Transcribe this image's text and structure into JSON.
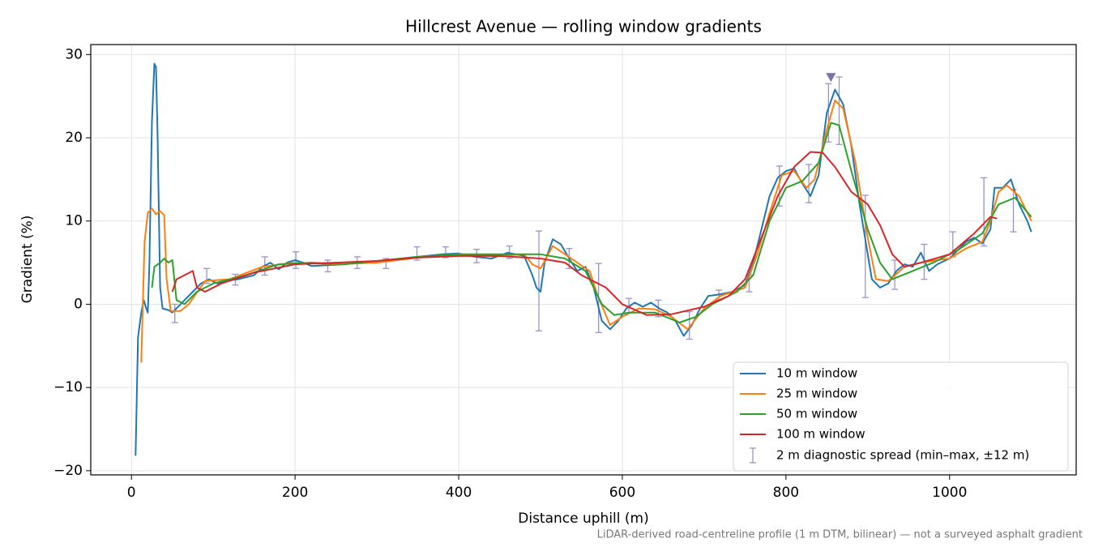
{
  "chart_data": {
    "type": "line",
    "title": "Hillcrest Avenue — rolling window gradients",
    "x_label": "Distance uphill (m)",
    "y_label": "Gradient (%)",
    "footnote": "LiDAR-derived road-centreline profile (1 m DTM, bilinear) — not a surveyed asphalt gradient",
    "xlim": [
      -49.75,
      1154.75
    ],
    "ylim": [
      -20.5,
      31.2
    ],
    "xticks": [
      0,
      200,
      400,
      600,
      800,
      1000
    ],
    "yticks": [
      {
        "value": -20,
        "label": "−20"
      },
      {
        "value": -10,
        "label": "−10"
      },
      0,
      10,
      20,
      30
    ],
    "grid": true,
    "legend": "lower right",
    "series": [
      {
        "name": "10 m window",
        "color": "#1f77b4",
        "x": [
          5,
          8,
          12,
          15,
          18,
          20,
          22,
          25,
          28,
          30,
          32,
          35,
          38,
          45,
          50,
          55,
          65,
          75,
          85,
          95,
          105,
          115,
          130,
          150,
          160,
          170,
          180,
          190,
          200,
          210,
          220,
          240,
          260,
          280,
          300,
          320,
          340,
          360,
          380,
          400,
          420,
          440,
          460,
          480,
          490,
          495,
          500,
          505,
          515,
          525,
          535,
          545,
          555,
          565,
          575,
          585,
          595,
          605,
          615,
          625,
          635,
          645,
          655,
          665,
          675,
          685,
          695,
          705,
          720,
          735,
          750,
          760,
          770,
          780,
          790,
          800,
          810,
          820,
          830,
          840,
          850,
          860,
          870,
          880,
          890,
          900,
          905,
          915,
          925,
          935,
          945,
          955,
          965,
          975,
          985,
          1000,
          1010,
          1020,
          1030,
          1040,
          1050,
          1055,
          1065,
          1075,
          1085,
          1095,
          1100
        ],
        "values": [
          -18.2,
          -4,
          -1,
          0.5,
          -0.5,
          -1,
          5,
          22,
          28.9,
          28.5,
          20,
          2,
          -0.5,
          -0.7,
          -1,
          -0.5,
          0.5,
          1.5,
          2.5,
          3,
          2.5,
          2.8,
          3,
          3.5,
          4.5,
          5,
          4.2,
          5,
          5.3,
          5,
          4.6,
          4.7,
          4.8,
          5,
          5,
          5.3,
          5.6,
          5.8,
          6,
          6.1,
          5.7,
          5.5,
          6.2,
          5.8,
          3.5,
          2,
          1.5,
          5,
          7.8,
          7.2,
          5.5,
          4,
          4.5,
          2,
          -2,
          -3,
          -2,
          -0.5,
          0.2,
          -0.3,
          0.2,
          -0.5,
          -1,
          -2,
          -3.8,
          -2.5,
          -0.5,
          1,
          1.2,
          1.5,
          2.3,
          5,
          9,
          13,
          15.2,
          16,
          16.3,
          14.5,
          13,
          15.5,
          23,
          25.8,
          24,
          19,
          12,
          6,
          3,
          2,
          2.5,
          4,
          4.8,
          4.5,
          6.2,
          4,
          4.8,
          5.5,
          6.5,
          7.5,
          8,
          7.3,
          9,
          14,
          14,
          15,
          12,
          10,
          8.7
        ]
      },
      {
        "name": "25 m window",
        "color": "#ff7f0e",
        "x": [
          12,
          16,
          20,
          25,
          30,
          35,
          40,
          43,
          48,
          60,
          70,
          90,
          120,
          160,
          200,
          250,
          300,
          350,
          400,
          450,
          480,
          490,
          500,
          515,
          530,
          545,
          560,
          570,
          585,
          600,
          620,
          640,
          660,
          680,
          700,
          720,
          750,
          765,
          780,
          795,
          810,
          825,
          835,
          850,
          860,
          870,
          885,
          900,
          910,
          925,
          945,
          965,
          985,
          1000,
          1020,
          1040,
          1050,
          1060,
          1070,
          1085,
          1100
        ],
        "values": [
          -7,
          7.5,
          11,
          11.5,
          10.8,
          11.2,
          10.7,
          3,
          -0.8,
          -0.8,
          0,
          2.8,
          3,
          4.5,
          5,
          4.8,
          5,
          5.6,
          6,
          5.8,
          6,
          4.8,
          4.3,
          7,
          6,
          5,
          4,
          1,
          -2.5,
          -1.5,
          -0.5,
          -0.6,
          -1.5,
          -3,
          -0.5,
          1,
          2,
          6,
          11,
          15.5,
          16,
          14,
          15,
          21,
          24.5,
          23.5,
          17,
          8,
          3,
          2.8,
          4.5,
          5,
          5.3,
          5.5,
          6.7,
          7.5,
          10,
          13.5,
          14.3,
          13,
          10
        ]
      },
      {
        "name": "50 m window",
        "color": "#2ca02c",
        "x": [
          25,
          28,
          35,
          40,
          45,
          50,
          55,
          65,
          80,
          100,
          140,
          180,
          220,
          260,
          300,
          350,
          400,
          450,
          500,
          530,
          555,
          575,
          590,
          610,
          640,
          670,
          690,
          710,
          740,
          760,
          780,
          800,
          820,
          840,
          855,
          865,
          880,
          900,
          915,
          930,
          950,
          980,
          1010,
          1040,
          1060,
          1080,
          1100
        ],
        "values": [
          2,
          4.5,
          5,
          5.5,
          5,
          5.3,
          0.5,
          0,
          1.5,
          2.5,
          3.5,
          4.8,
          5,
          4.8,
          5.2,
          5.7,
          6,
          6,
          6,
          5.5,
          4,
          0,
          -1.3,
          -1,
          -1,
          -2.2,
          -1.5,
          0,
          1.5,
          3.5,
          10,
          14,
          14.8,
          17,
          21.8,
          21.5,
          16,
          9,
          5,
          3,
          3.8,
          5,
          6.5,
          8.5,
          12,
          12.8,
          10.5
        ]
      },
      {
        "name": "100 m window",
        "color": "#d62728",
        "x": [
          50,
          55,
          65,
          75,
          80,
          90,
          110,
          150,
          200,
          250,
          300,
          350,
          400,
          450,
          500,
          530,
          550,
          580,
          600,
          630,
          660,
          700,
          730,
          750,
          770,
          790,
          810,
          830,
          845,
          860,
          880,
          900,
          915,
          930,
          945,
          965,
          1000,
          1030,
          1050,
          1058
        ],
        "values": [
          1.5,
          3,
          3.5,
          4,
          2,
          1.5,
          2.5,
          3.8,
          4.8,
          5,
          5.2,
          5.6,
          5.8,
          5.8,
          5.5,
          5,
          3.5,
          2,
          0,
          -1.3,
          -1.2,
          -0.3,
          1,
          3,
          8,
          13,
          16.5,
          18.3,
          18.2,
          16.5,
          13.5,
          12,
          9.5,
          6,
          4.5,
          5,
          6,
          8.5,
          10.5,
          10.3
        ]
      }
    ],
    "error_bars": {
      "name": "2 m diagnostic spread (min–max, ±12 m)",
      "color": "#9a94c4",
      "x": [
        53,
        92,
        127,
        163,
        201,
        240,
        276,
        311,
        349,
        384,
        422,
        462,
        498,
        535,
        571,
        608,
        644,
        682,
        718,
        755,
        792,
        828,
        852,
        865,
        897,
        933,
        969,
        1004,
        1042,
        1078
      ],
      "low": [
        -2.2,
        2.5,
        2.3,
        3.5,
        4.3,
        3.9,
        4.3,
        4.3,
        5.3,
        5.6,
        5,
        5.5,
        -3.2,
        4.3,
        -3.4,
        -1,
        -1.5,
        -4.2,
        0.5,
        1.5,
        11.8,
        12.2,
        19.5,
        19.2,
        0.8,
        1.8,
        3,
        5.7,
        7,
        8.7
      ],
      "high": [
        0,
        4.3,
        3.6,
        5.7,
        6.3,
        5.3,
        5.7,
        5.5,
        6.9,
        6.9,
        6.6,
        7,
        8.8,
        6.7,
        4.9,
        0.7,
        0.5,
        -0.9,
        1.7,
        3.5,
        16.6,
        16.8,
        26.5,
        27.3,
        13.1,
        5.3,
        7.2,
        8.7,
        15.2,
        13.8
      ]
    },
    "peak_marker": {
      "x": 855,
      "y": 27.2,
      "color": "#7b73a8"
    }
  }
}
